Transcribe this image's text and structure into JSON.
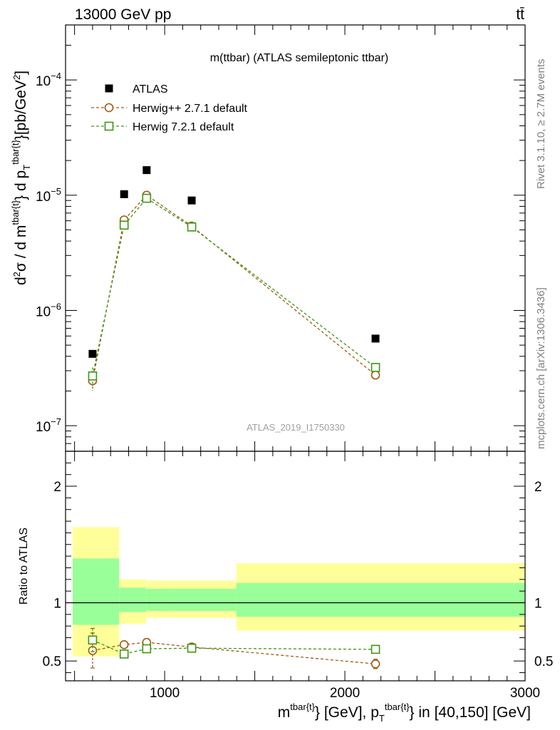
{
  "header": {
    "energy_label": "13000 GeV pp",
    "process_label": "tt̄"
  },
  "side": {
    "rivet_label": "Rivet 3.1.10, ≥ 2.7M events",
    "mcplots_label": "mcplots.cern.ch [arXiv:1306.3436]"
  },
  "chart_data": {
    "type": "scatter",
    "title": "m(ttbar) (ATLAS semileptonic ttbar)",
    "analysis_id": "ATLAS_2019_I1750330",
    "ylabel_main": "d²σ / d m^{tbar{t}} d p_T^{tbar{t}} [pb/GeV²]",
    "ylabel_ratio": "Ratio to ATLAS",
    "xlabel": "m^{tbar{t}} [GeV], p_T^{tbar{t}} in [40,150] [GeV]",
    "xlim": [
      450,
      3000
    ],
    "ylim_main": [
      6e-08,
      0.0003
    ],
    "ylim_ratio": [
      0.33,
      2.3
    ],
    "x_ticks": [
      "1000",
      "2000",
      "3000"
    ],
    "y_ticks_main": [
      {
        "value": 1e-07,
        "base": "10",
        "exp": "−7"
      },
      {
        "value": 1e-06,
        "base": "10",
        "exp": "−6"
      },
      {
        "value": 1e-05,
        "base": "10",
        "exp": "−5"
      },
      {
        "value": 0.0001,
        "base": "10",
        "exp": "−4"
      }
    ],
    "y_ticks_ratio": [
      "0.5",
      "1",
      "2"
    ],
    "bins": [
      [
        450,
        700
      ],
      [
        700,
        850
      ],
      [
        850,
        1000
      ],
      [
        1000,
        1350
      ],
      [
        1350,
        3000
      ]
    ],
    "x": [
      600,
      775,
      900,
      1150,
      2170
    ],
    "series": [
      {
        "name": "ATLAS",
        "color": "#000000",
        "marker": "filled-square",
        "values": [
          4.2e-07,
          1.02e-05,
          1.65e-05,
          9e-06,
          5.7e-07
        ]
      },
      {
        "name": "Herwig++ 2.7.1 default",
        "color": "#a05a14",
        "marker": "open-circle",
        "values": [
          2.45e-07,
          6.1e-06,
          1e-05,
          5.4e-06,
          2.75e-07
        ],
        "ratio": [
          0.59,
          0.64,
          0.66,
          0.62,
          0.475
        ],
        "ratio_err": [
          0.15,
          0.03,
          0.025,
          0.015,
          0.04
        ]
      },
      {
        "name": "Herwig 7.2.1 default",
        "color": "#3c9614",
        "marker": "open-square",
        "values": [
          2.7e-07,
          5.5e-06,
          9.4e-06,
          5.3e-06,
          3.2e-07
        ],
        "ratio": [
          0.68,
          0.56,
          0.605,
          0.61,
          0.6
        ],
        "ratio_err": [
          0.1,
          0.03,
          0.025,
          0.015,
          0.03
        ]
      }
    ],
    "uncertainty_bands": {
      "inner_color": "#99ff99",
      "outer_color": "#ffff99",
      "inner": [
        [
          0.81,
          1.38
        ],
        [
          0.92,
          1.13
        ],
        [
          0.93,
          1.12
        ],
        [
          0.93,
          1.12
        ],
        [
          0.88,
          1.17
        ]
      ],
      "outer": [
        [
          0.54,
          1.65
        ],
        [
          0.82,
          1.2
        ],
        [
          0.87,
          1.19
        ],
        [
          0.87,
          1.19
        ],
        [
          0.76,
          1.34
        ]
      ]
    }
  }
}
